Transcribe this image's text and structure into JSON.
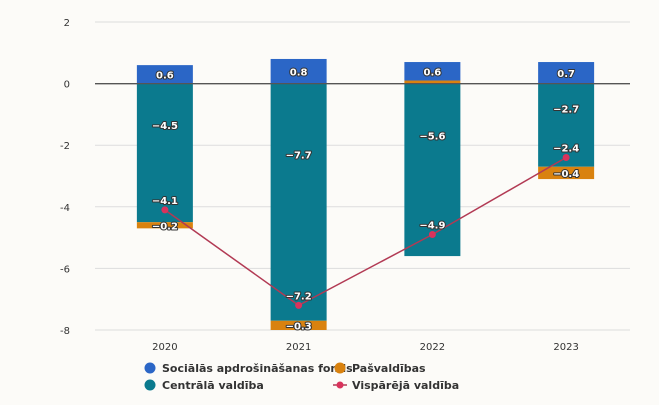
{
  "chart_data": {
    "type": "bar",
    "stacked": true,
    "categories": [
      "2020",
      "2021",
      "2022",
      "2023"
    ],
    "ylim": [
      -8,
      2
    ],
    "yticks": [
      2,
      0,
      -2,
      -4,
      -6,
      -8
    ],
    "grid": true,
    "legend_position": "bottom",
    "series": [
      {
        "name": "Sociālās apdrošināšanas fonds",
        "kind": "bar",
        "color": "#2b66c6",
        "values": [
          0.6,
          0.8,
          0.6,
          0.7
        ],
        "labels": [
          "0.6",
          "0.8",
          "0.6",
          "0.7"
        ]
      },
      {
        "name": "Pašvaldības",
        "kind": "bar",
        "color": "#d9820f",
        "values": [
          -0.2,
          -0.3,
          0.1,
          -0.4
        ],
        "labels": [
          "−0.2",
          "−0.3",
          "",
          "−0.4"
        ]
      },
      {
        "name": "Centrālā valdība",
        "kind": "bar",
        "color": "#0b7a8e",
        "values": [
          -4.5,
          -7.7,
          -5.6,
          -2.7
        ],
        "labels": [
          "−4.5",
          "−7.7",
          "−5.6",
          "−2.7"
        ]
      },
      {
        "name": "Vispārējā valdība",
        "kind": "line",
        "color": "#b23a54",
        "values": [
          -4.1,
          -7.2,
          -4.9,
          -2.4
        ],
        "labels": [
          "−4.1",
          "−7.2",
          "−4.9",
          "−2.4"
        ]
      }
    ]
  }
}
